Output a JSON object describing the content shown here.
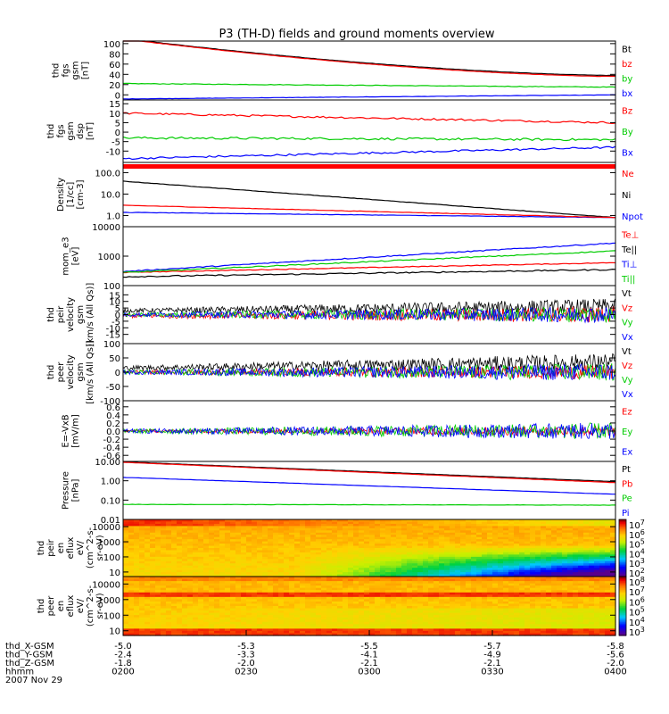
{
  "title": "P3 (TH-D) fields and ground moments overview",
  "chart_data": {
    "type": "line",
    "title": "P3 (TH-D) fields and ground moments overview",
    "x": [
      "0200",
      "0230",
      "0300",
      "0330",
      "0400"
    ],
    "xlabel": "hhmm",
    "date": "2007 Nov 29",
    "orbit_rows": [
      {
        "label": "thd_X-GSM",
        "values": [
          "-5.0",
          "-5.3",
          "-5.5",
          "-5.7",
          "-5.8"
        ]
      },
      {
        "label": "thd_Y-GSM",
        "values": [
          "-2.4",
          "-3.3",
          "-4.1",
          "-4.9",
          "-5.6"
        ]
      },
      {
        "label": "thd_Z-GSM",
        "values": [
          "-1.8",
          "-2.0",
          "-2.1",
          "-2.1",
          "-2.0"
        ]
      },
      {
        "label": "hhmm",
        "values": [
          "0200",
          "0230",
          "0300",
          "0330",
          "0400"
        ]
      }
    ],
    "panels": [
      {
        "ylabel": [
          "thd",
          "fgs",
          "gsm",
          "[nT]"
        ],
        "ylim": [
          -10,
          105
        ],
        "scale": "linear",
        "ticks": [
          "100",
          "80",
          "60",
          "40",
          "20",
          "0"
        ],
        "tick_values": [
          100,
          80,
          60,
          40,
          20,
          0
        ],
        "series": [
          {
            "name": "Bt",
            "color": "#000000",
            "start": 110,
            "end": 38,
            "noise": 0.3,
            "shape": "decay"
          },
          {
            "name": "bz",
            "color": "#ff0000",
            "start": 109,
            "end": 36,
            "noise": 0.3,
            "shape": "decay"
          },
          {
            "name": "by",
            "color": "#00cc00",
            "start": 22,
            "end": 15,
            "noise": 0.6,
            "shape": "lin"
          },
          {
            "name": "bx",
            "color": "#0000ff",
            "start": -8,
            "end": 0,
            "noise": 0.3,
            "shape": "lin"
          }
        ]
      },
      {
        "ylabel": [
          "thd",
          "fgs",
          "gsm",
          "dsp",
          "[nT]"
        ],
        "ylim": [
          -16,
          17
        ],
        "scale": "linear",
        "ticks": [
          "15",
          "10",
          "5",
          "0",
          "-5",
          "-10"
        ],
        "tick_values": [
          15,
          10,
          5,
          0,
          -5,
          -10
        ],
        "series": [
          {
            "name": "Bz",
            "color": "#ff0000",
            "start": 10,
            "end": 5,
            "noise": 0.5,
            "shape": "lin"
          },
          {
            "name": "By",
            "color": "#00cc00",
            "start": -3,
            "end": -4,
            "noise": 0.6,
            "shape": "lin"
          },
          {
            "name": "Bx",
            "color": "#0000ff",
            "start": -14,
            "end": -8,
            "noise": 0.5,
            "shape": "lin"
          }
        ]
      },
      {
        "ylabel": [
          "Density",
          "[1/cc]",
          "[cm-3]"
        ],
        "ylim": [
          0.3,
          300
        ],
        "scale": "log",
        "ticks": [
          "100.0",
          "10.0",
          "1.0"
        ],
        "tick_values": [
          100,
          10,
          1
        ],
        "series": [
          {
            "name": "Ne",
            "color": "#ff0000",
            "start": 250,
            "end": 250,
            "noise": 0.02,
            "shape": "lin",
            "band": true
          },
          {
            "name": "Ni",
            "color": "#000000",
            "start": 40,
            "end": 0.8,
            "noise": 0.02,
            "shape": "log"
          },
          {
            "name": "Npot",
            "color": "#0000ff",
            "start": 1.4,
            "end": 0.8,
            "noise": 0.02,
            "shape": "log"
          },
          {
            "name": "Ni2",
            "color": "#ff0000",
            "start": 3,
            "end": 0.8,
            "noise": 0.02,
            "shape": "log",
            "nolegend": true
          }
        ]
      },
      {
        "ylabel": [
          "mom_e3",
          "[eV]"
        ],
        "ylim": [
          100,
          10000
        ],
        "scale": "log",
        "ticks": [
          "10000",
          "1000",
          "100"
        ],
        "tick_values": [
          10000,
          1000,
          100
        ],
        "series": [
          {
            "name": "Te⊥",
            "color": "#ff0000",
            "start": 280,
            "end": 600,
            "noise": 0.03,
            "shape": "log"
          },
          {
            "name": "Te||",
            "color": "#000000",
            "start": 200,
            "end": 350,
            "noise": 0.05,
            "shape": "log"
          },
          {
            "name": "Ti⊥",
            "color": "#0000ff",
            "start": 300,
            "end": 2800,
            "noise": 0.04,
            "shape": "log"
          },
          {
            "name": "Ti||",
            "color": "#00cc00",
            "start": 280,
            "end": 1500,
            "noise": 0.04,
            "shape": "log"
          }
        ]
      },
      {
        "ylabel": [
          "thd",
          "peir",
          "velocity",
          "gsm",
          "[km/s (All Qs)]"
        ],
        "ylim": [
          -22,
          22
        ],
        "scale": "linear",
        "ticks": [
          "15",
          "10",
          "5",
          "0",
          "-5",
          "-10",
          "-15"
        ],
        "tick_values": [
          15,
          10,
          5,
          0,
          -5,
          -10,
          -15
        ],
        "series": [
          {
            "name": "Vt",
            "color": "#000000",
            "start": 3,
            "end": 6,
            "noise": 3,
            "shape": "lin",
            "growth": true
          },
          {
            "name": "Vz",
            "color": "#ff0000",
            "start": -1,
            "end": 0,
            "noise": 3,
            "shape": "lin",
            "growth": true
          },
          {
            "name": "Vy",
            "color": "#00cc00",
            "start": 0,
            "end": 0,
            "noise": 3,
            "shape": "lin",
            "growth": true
          },
          {
            "name": "Vx",
            "color": "#0000ff",
            "start": 0,
            "end": 0,
            "noise": 3,
            "shape": "lin",
            "growth": true
          }
        ]
      },
      {
        "ylabel": [
          "thd",
          "peer",
          "velocity",
          "gsm",
          "[km/s (All Qs)]"
        ],
        "ylim": [
          -100,
          100
        ],
        "scale": "linear",
        "ticks": [
          "100",
          "50",
          "0",
          "-50",
          "-100"
        ],
        "tick_values": [
          100,
          50,
          0,
          -50,
          -100
        ],
        "series": [
          {
            "name": "Vt",
            "color": "#000000",
            "start": 15,
            "end": 35,
            "noise": 15,
            "shape": "lin",
            "growth": true
          },
          {
            "name": "Vz",
            "color": "#ff0000",
            "start": 0,
            "end": 0,
            "noise": 12,
            "shape": "lin",
            "growth": true
          },
          {
            "name": "Vy",
            "color": "#00cc00",
            "start": 0,
            "end": 0,
            "noise": 15,
            "shape": "lin",
            "growth": true
          },
          {
            "name": "Vx",
            "color": "#0000ff",
            "start": 0,
            "end": 0,
            "noise": 15,
            "shape": "lin",
            "growth": true
          }
        ]
      },
      {
        "ylabel": [
          "E=-VxB",
          "[mV/m]"
        ],
        "ylim": [
          -0.75,
          0.75
        ],
        "scale": "linear",
        "ticks": [
          "0.6",
          "0.4",
          "0.2",
          "0.0",
          "-0.2",
          "-0.4",
          "-0.6"
        ],
        "tick_values": [
          0.6,
          0.4,
          0.2,
          0,
          -0.2,
          -0.4,
          -0.6
        ],
        "series": [
          {
            "name": "Ez",
            "color": "#ff0000",
            "start": 0,
            "end": 0,
            "noise": 0.06,
            "shape": "lin",
            "growth": true
          },
          {
            "name": "Ey",
            "color": "#00cc00",
            "start": 0,
            "end": 0,
            "noise": 0.1,
            "shape": "lin",
            "growth": true
          },
          {
            "name": "Ex",
            "color": "#0000ff",
            "start": 0,
            "end": 0,
            "noise": 0.1,
            "shape": "lin",
            "growth": true
          }
        ]
      },
      {
        "ylabel": [
          "Pressure",
          "[nPa]"
        ],
        "ylim": [
          0.01,
          10
        ],
        "scale": "log",
        "ticks": [
          "10.00",
          "1.00",
          "0.10",
          "0.01"
        ],
        "tick_values": [
          10,
          1,
          0.1,
          0.01
        ],
        "series": [
          {
            "name": "Pt",
            "color": "#000000",
            "start": 9.5,
            "end": 0.9,
            "noise": 0.01,
            "shape": "log"
          },
          {
            "name": "Pb",
            "color": "#ff0000",
            "start": 9,
            "end": 0.8,
            "noise": 0.01,
            "shape": "log"
          },
          {
            "name": "Pe",
            "color": "#00cc00",
            "start": 0.06,
            "end": 0.055,
            "noise": 0.02,
            "shape": "log"
          },
          {
            "name": "Pi",
            "color": "#0000ff",
            "start": 1.5,
            "end": 0.2,
            "noise": 0.01,
            "shape": "log"
          }
        ]
      }
    ],
    "spectrograms": [
      {
        "ylabel": [
          "thd",
          "peir",
          "en",
          "eflux",
          "eV/",
          "(cm^2-s-",
          "sr-eV)"
        ],
        "ylim": [
          5,
          30000
        ],
        "scale": "log",
        "ticks": [
          "10000",
          "1000",
          "100",
          "10"
        ],
        "tick_values": [
          10000,
          1000,
          100,
          10
        ],
        "colorbar": {
          "ticks": [
            "10^7",
            "10^6",
            "10^5",
            "10^4",
            "10^3",
            "10^2"
          ]
        },
        "variant": "ion"
      },
      {
        "ylabel": [
          "thd",
          "peer",
          "en",
          "eflux",
          "eV/",
          "(cm^2-s-",
          "sr-eV)"
        ],
        "ylim": [
          5,
          30000
        ],
        "scale": "log",
        "ticks": [
          "10000",
          "1000",
          "100",
          "10"
        ],
        "tick_values": [
          10000,
          1000,
          100,
          10
        ],
        "colorbar": {
          "ticks": [
            "10^8",
            "10^7",
            "10^6",
            "10^5",
            "10^4",
            "10^3"
          ]
        },
        "variant": "electron"
      }
    ]
  }
}
